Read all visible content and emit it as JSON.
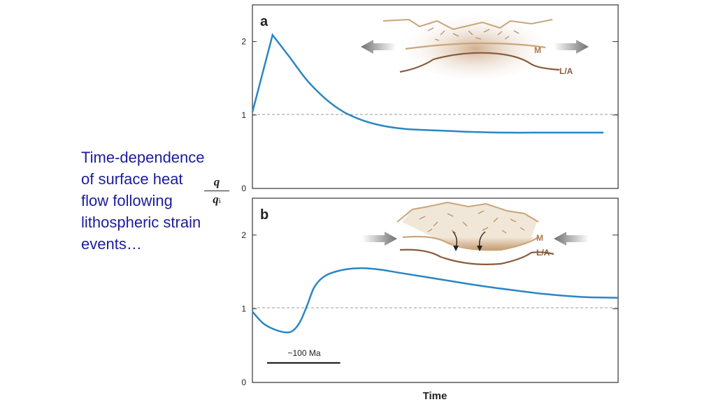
{
  "caption": {
    "lines": [
      "Time-dependence",
      "of surface heat",
      "flow following",
      "lithospheric strain",
      "events…"
    ],
    "fraction_numerator": "q",
    "fraction_denominator": "q",
    "fraction_subscript": "i"
  },
  "colors": {
    "caption": "#1c1c9e",
    "curve": "#2a86c4",
    "reference_line": "#999999",
    "moho_line": "#c9a57a",
    "lithosphere_line": "#8a5a3a",
    "inset_label": "#b07a4a",
    "arrow": "#7a7a7a"
  },
  "chart_data": [
    {
      "type": "line",
      "panel_label": "a",
      "xlabel": "",
      "ylabel": "",
      "ylim": [
        0,
        2.5
      ],
      "yticks": [
        0,
        1,
        2
      ],
      "ytick_labels": [
        "0",
        "1",
        "2"
      ],
      "xlim": [
        0,
        100
      ],
      "reference_line_y": 1,
      "grid": false,
      "series": [
        {
          "x": [
            0,
            5.5,
            10,
            15,
            20,
            25,
            30,
            35,
            40,
            45,
            50,
            55,
            60,
            70,
            80,
            90,
            96
          ],
          "y": [
            1.04,
            2.09,
            1.8,
            1.47,
            1.22,
            1.04,
            0.93,
            0.86,
            0.82,
            0.8,
            0.79,
            0.78,
            0.77,
            0.76,
            0.76,
            0.76,
            0.76
          ]
        }
      ],
      "inset": {
        "description_labels": [
          "M",
          "L/A"
        ],
        "arrows": "outward"
      }
    },
    {
      "type": "line",
      "panel_label": "b",
      "xlabel": "Time",
      "ylabel": "",
      "ylim": [
        0,
        2.5
      ],
      "yticks": [
        0,
        1,
        2
      ],
      "ytick_labels": [
        "0",
        "1",
        "2"
      ],
      "xlim": [
        0,
        100
      ],
      "reference_line_y": 1,
      "grid": false,
      "scale_bar": {
        "label": "~100 Ma",
        "length": 20
      },
      "series": [
        {
          "x": [
            0,
            3,
            6,
            9,
            11,
            13,
            15,
            17,
            20,
            25,
            30,
            35,
            40,
            50,
            60,
            70,
            80,
            90,
            100
          ],
          "y": [
            0.96,
            0.8,
            0.72,
            0.68,
            0.7,
            0.82,
            1.05,
            1.3,
            1.45,
            1.53,
            1.55,
            1.53,
            1.49,
            1.41,
            1.33,
            1.26,
            1.2,
            1.16,
            1.15
          ]
        }
      ],
      "inset": {
        "description_labels": [
          "M",
          "L/A"
        ],
        "arrows": "inward"
      }
    }
  ]
}
